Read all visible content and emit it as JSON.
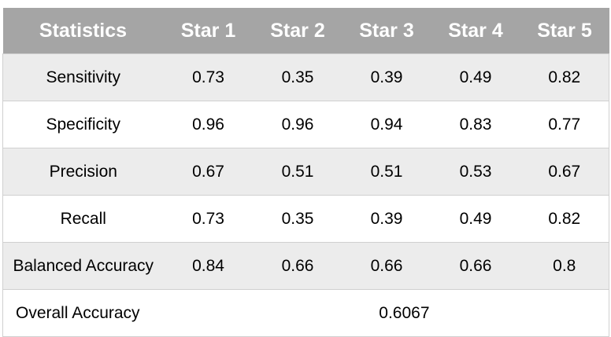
{
  "table": {
    "headers": [
      "Statistics",
      "Star 1",
      "Star 2",
      "Star 3",
      "Star 4",
      "Star 5"
    ],
    "rows": [
      {
        "label": "Sensitivity",
        "values": [
          "0.73",
          "0.35",
          "0.39",
          "0.49",
          "0.82"
        ]
      },
      {
        "label": "Specificity",
        "values": [
          "0.96",
          "0.96",
          "0.94",
          "0.83",
          "0.77"
        ]
      },
      {
        "label": "Precision",
        "values": [
          "0.67",
          "0.51",
          "0.51",
          "0.53",
          "0.67"
        ]
      },
      {
        "label": "Recall",
        "values": [
          "0.73",
          "0.35",
          "0.39",
          "0.49",
          "0.82"
        ]
      },
      {
        "label": "Balanced Accuracy",
        "values": [
          "0.84",
          "0.66",
          "0.66",
          "0.66",
          "0.8"
        ]
      }
    ],
    "overall": {
      "label": "Overall Accuracy",
      "value": "0.6067"
    }
  },
  "colors": {
    "header_bg": "#a5a5a5",
    "header_text": "#ffffff",
    "shaded_row": "#ececec",
    "plain_row": "#ffffff",
    "border": "#d0d0d0"
  }
}
